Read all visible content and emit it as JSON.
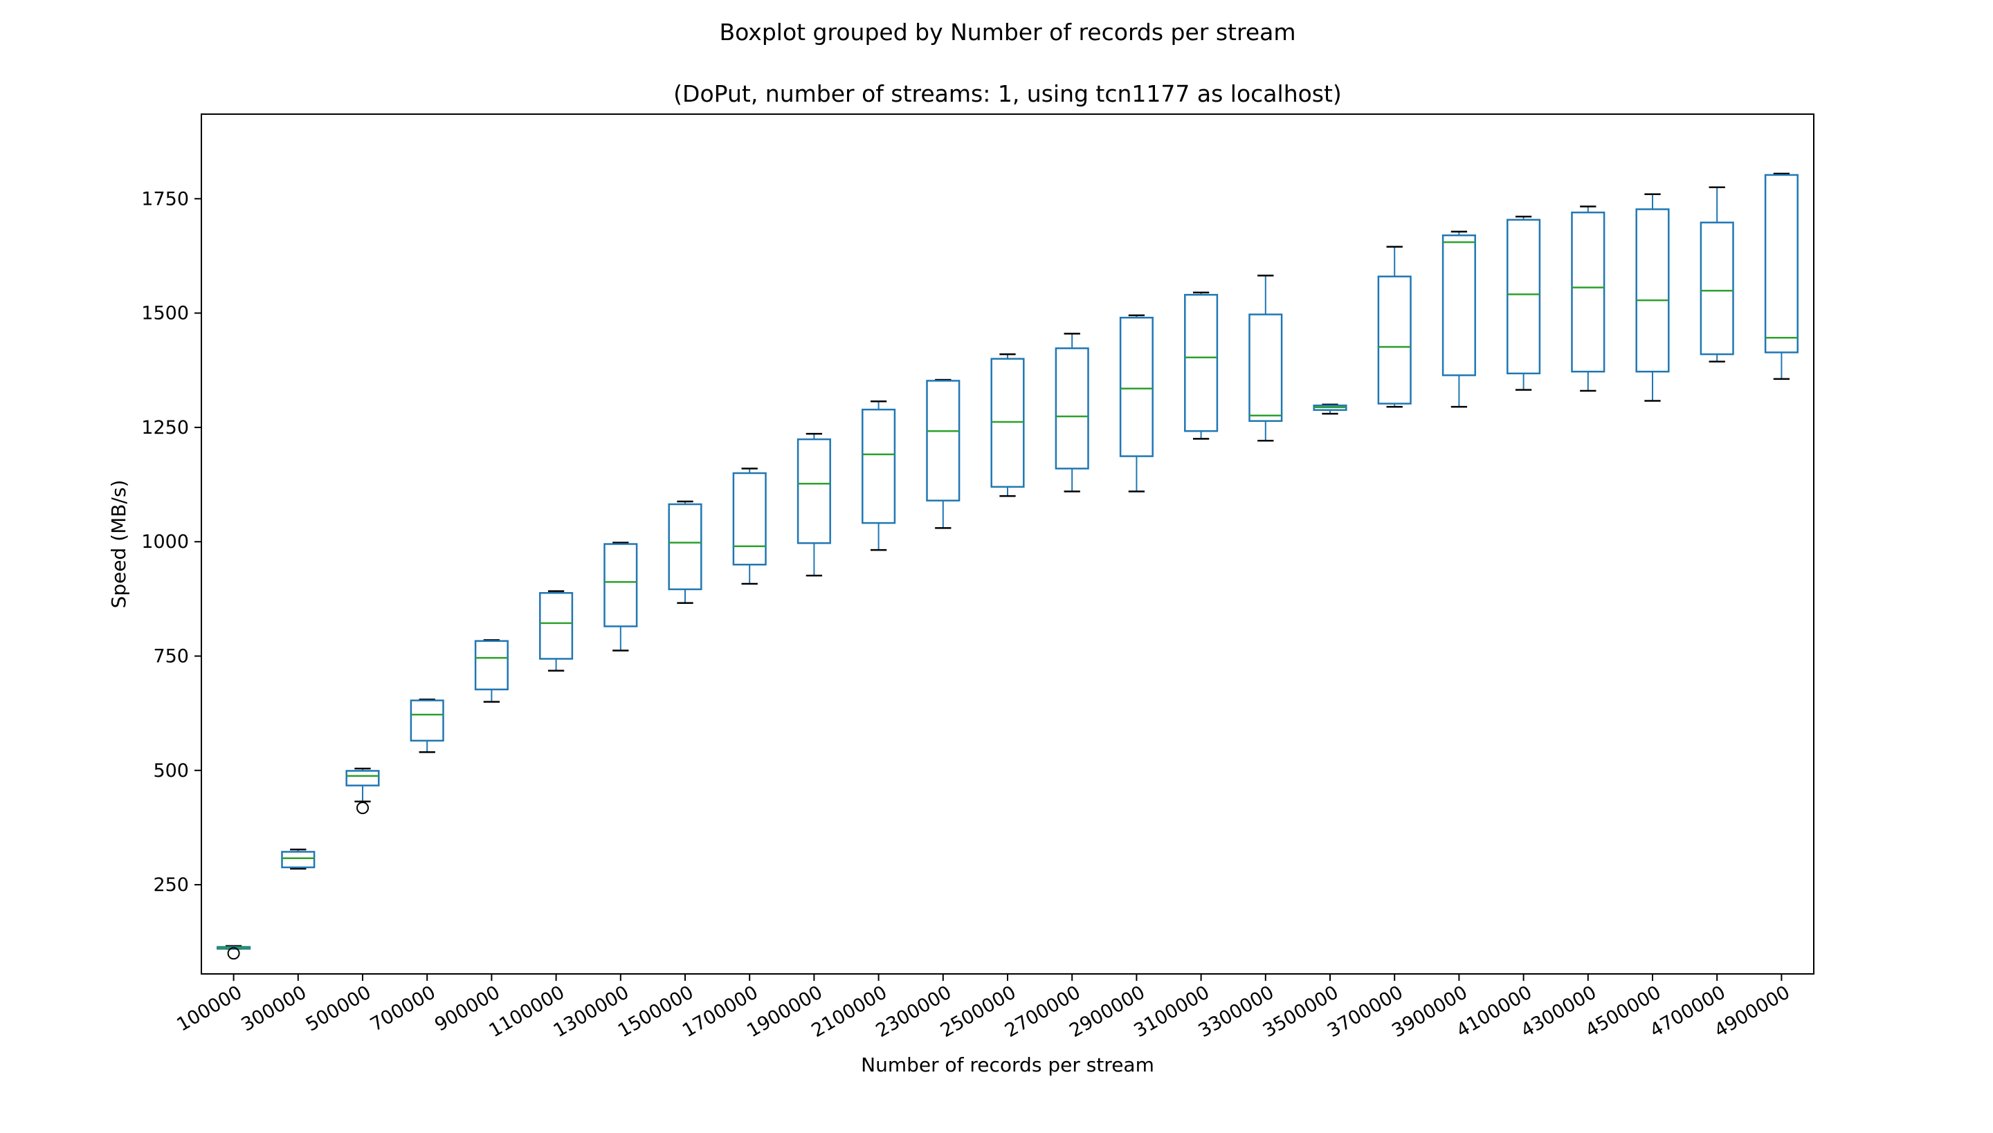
{
  "chart_data": {
    "type": "box",
    "title": "Boxplot grouped by Number of records per stream",
    "subtitle": "(DoPut, number of streams: 1, using tcn1177 as localhost)",
    "xlabel": "Number of records per stream",
    "ylabel": "Speed (MB/s)",
    "ylim": [
      55,
      1935
    ],
    "yticks": [
      250,
      500,
      750,
      1000,
      1250,
      1500,
      1750
    ],
    "grid": false,
    "colors": {
      "box": "#1f77b4",
      "median": "#2ca02c",
      "whisker": "#1f77b4",
      "cap": "#000000",
      "flier": "#000000"
    },
    "categories": [
      "100000",
      "300000",
      "500000",
      "700000",
      "900000",
      "1100000",
      "1300000",
      "1500000",
      "1700000",
      "1900000",
      "2100000",
      "2300000",
      "2500000",
      "2700000",
      "2900000",
      "3100000",
      "3300000",
      "3500000",
      "3700000",
      "3900000",
      "4100000",
      "4300000",
      "4500000",
      "4700000",
      "4900000"
    ],
    "boxes": [
      {
        "whislo": 110,
        "q1": 110,
        "med": 112,
        "q3": 114,
        "whishi": 116,
        "fliers": [
          100
        ]
      },
      {
        "whislo": 285,
        "q1": 288,
        "med": 308,
        "q3": 322,
        "whishi": 327,
        "fliers": []
      },
      {
        "whislo": 432,
        "q1": 467,
        "med": 488,
        "q3": 499,
        "whishi": 504,
        "fliers": [
          418
        ]
      },
      {
        "whislo": 540,
        "q1": 565,
        "med": 622,
        "q3": 653,
        "whishi": 655,
        "fliers": []
      },
      {
        "whislo": 650,
        "q1": 677,
        "med": 746,
        "q3": 783,
        "whishi": 785,
        "fliers": []
      },
      {
        "whislo": 718,
        "q1": 744,
        "med": 822,
        "q3": 888,
        "whishi": 892,
        "fliers": []
      },
      {
        "whislo": 762,
        "q1": 815,
        "med": 912,
        "q3": 995,
        "whishi": 998,
        "fliers": []
      },
      {
        "whislo": 866,
        "q1": 896,
        "med": 998,
        "q3": 1082,
        "whishi": 1088,
        "fliers": []
      },
      {
        "whislo": 908,
        "q1": 950,
        "med": 990,
        "q3": 1150,
        "whishi": 1160,
        "fliers": []
      },
      {
        "whislo": 926,
        "q1": 997,
        "med": 1127,
        "q3": 1224,
        "whishi": 1236,
        "fliers": []
      },
      {
        "whislo": 982,
        "q1": 1041,
        "med": 1191,
        "q3": 1289,
        "whishi": 1307,
        "fliers": []
      },
      {
        "whislo": 1030,
        "q1": 1090,
        "med": 1242,
        "q3": 1352,
        "whishi": 1354,
        "fliers": []
      },
      {
        "whislo": 1100,
        "q1": 1120,
        "med": 1262,
        "q3": 1400,
        "whishi": 1410,
        "fliers": []
      },
      {
        "whislo": 1110,
        "q1": 1160,
        "med": 1274,
        "q3": 1423,
        "whishi": 1455,
        "fliers": []
      },
      {
        "whislo": 1110,
        "q1": 1187,
        "med": 1335,
        "q3": 1490,
        "whishi": 1495,
        "fliers": []
      },
      {
        "whislo": 1225,
        "q1": 1242,
        "med": 1403,
        "q3": 1540,
        "whishi": 1545,
        "fliers": []
      },
      {
        "whislo": 1221,
        "q1": 1264,
        "med": 1276,
        "q3": 1497,
        "whishi": 1582,
        "fliers": []
      },
      {
        "whislo": 1280,
        "q1": 1288,
        "med": 1294,
        "q3": 1298,
        "whishi": 1300,
        "fliers": []
      },
      {
        "whislo": 1295,
        "q1": 1302,
        "med": 1426,
        "q3": 1580,
        "whishi": 1645,
        "fliers": []
      },
      {
        "whislo": 1295,
        "q1": 1364,
        "med": 1655,
        "q3": 1670,
        "whishi": 1678,
        "fliers": []
      },
      {
        "whislo": 1332,
        "q1": 1368,
        "med": 1541,
        "q3": 1704,
        "whishi": 1711,
        "fliers": []
      },
      {
        "whislo": 1330,
        "q1": 1372,
        "med": 1556,
        "q3": 1720,
        "whishi": 1733,
        "fliers": []
      },
      {
        "whislo": 1308,
        "q1": 1372,
        "med": 1528,
        "q3": 1727,
        "whishi": 1760,
        "fliers": []
      },
      {
        "whislo": 1394,
        "q1": 1410,
        "med": 1549,
        "q3": 1698,
        "whishi": 1775,
        "fliers": []
      },
      {
        "whislo": 1356,
        "q1": 1414,
        "med": 1446,
        "q3": 1802,
        "whishi": 1805,
        "fliers": []
      }
    ]
  }
}
